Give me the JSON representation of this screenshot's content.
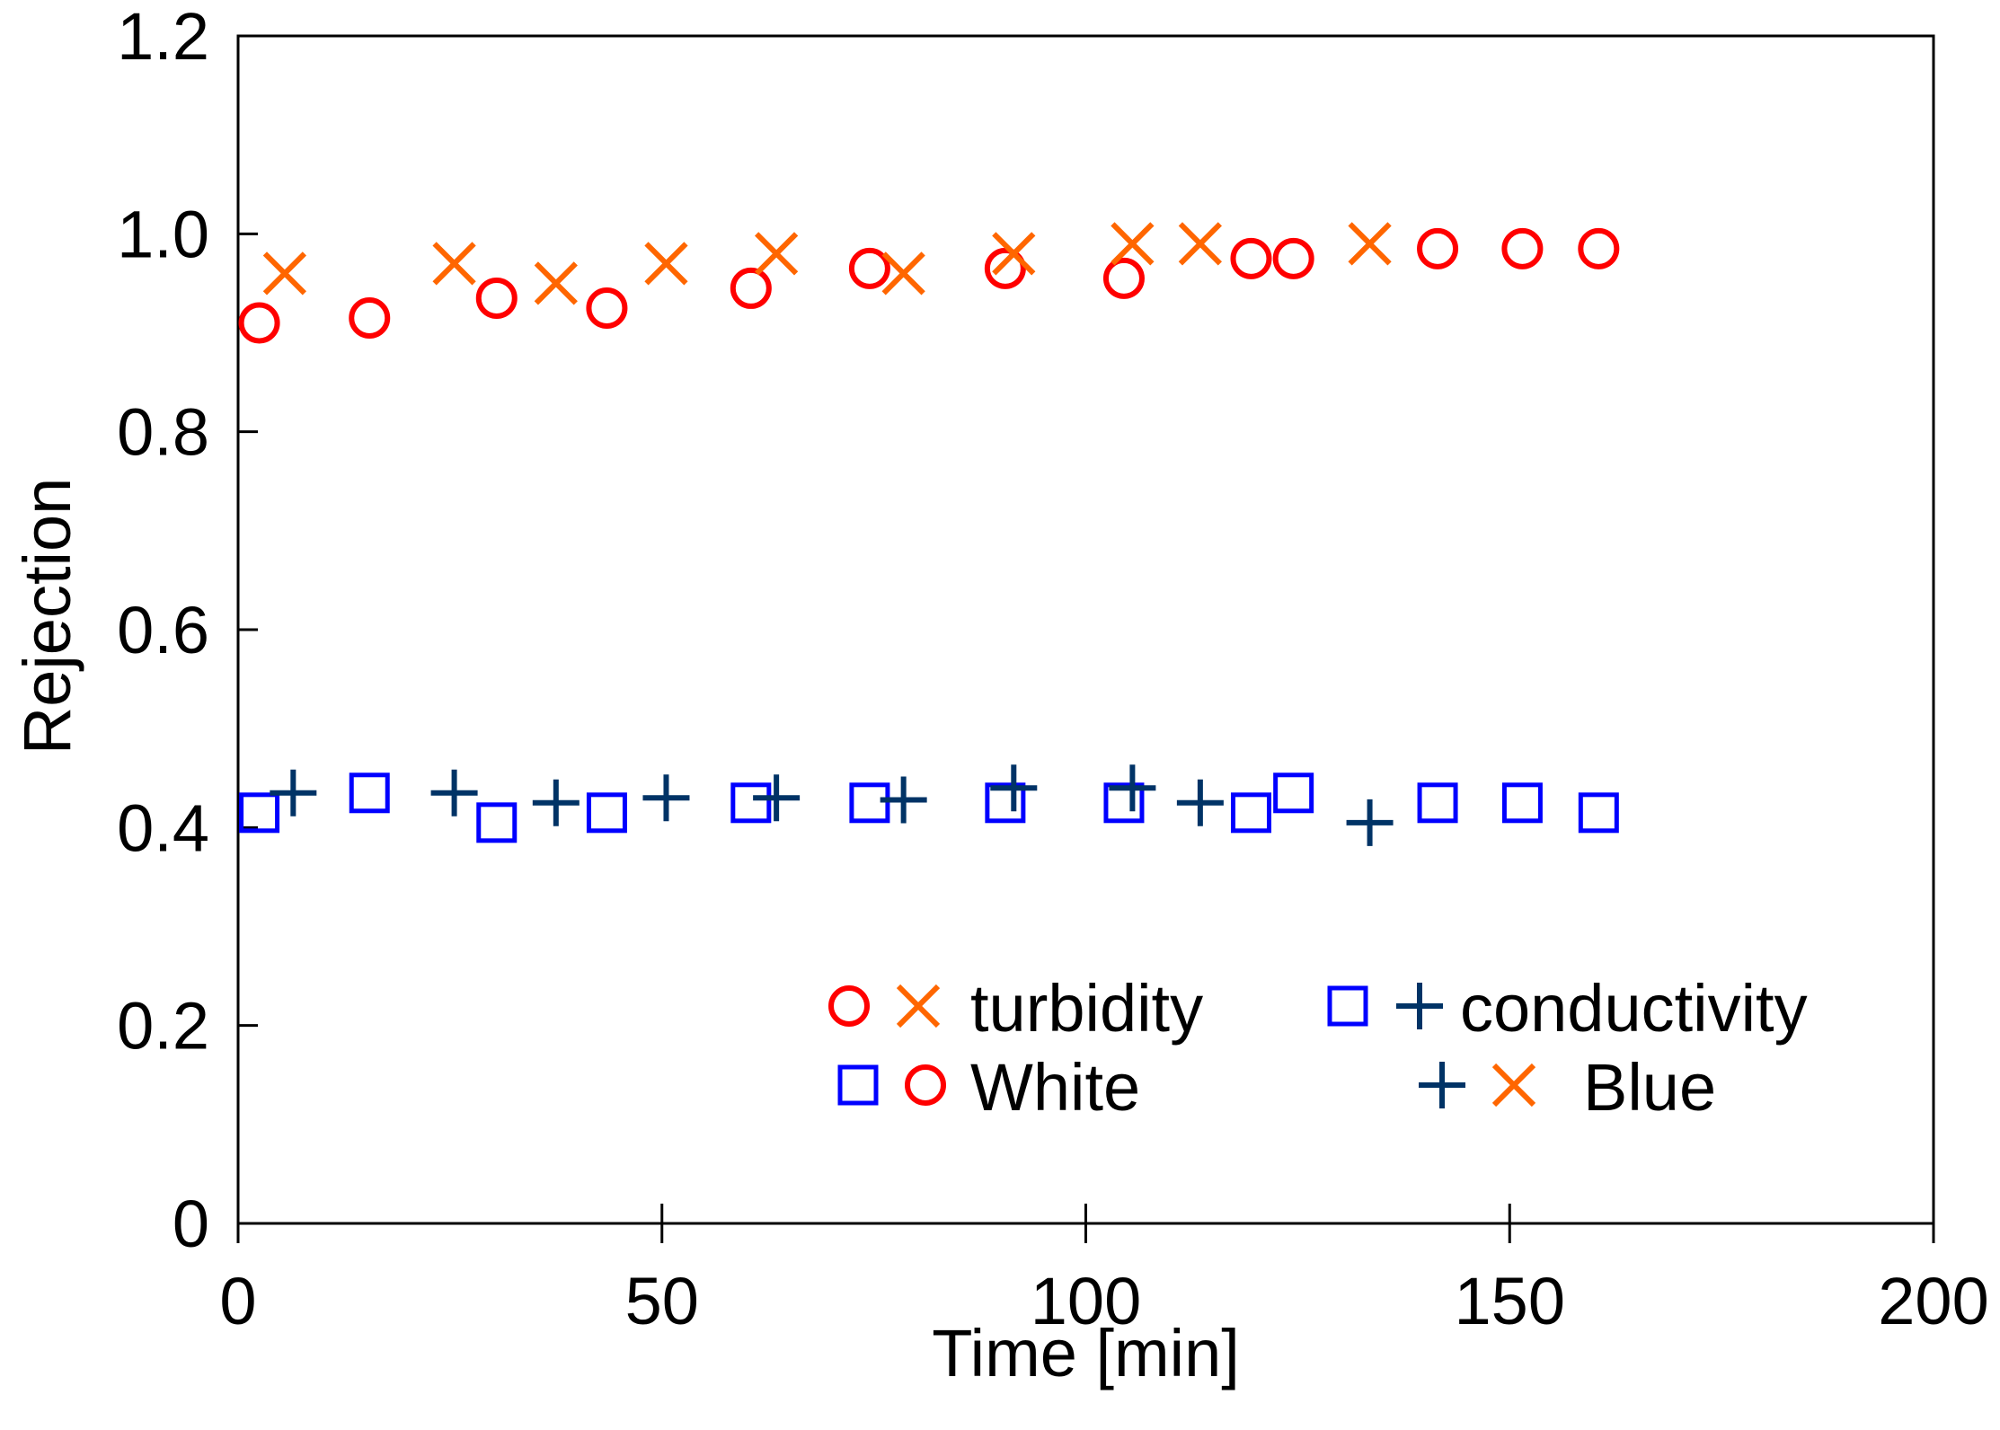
{
  "chart_data": {
    "type": "scatter",
    "title": "",
    "xlabel": "Time [min]",
    "ylabel": "Rejection",
    "xlim": [
      0,
      200
    ],
    "ylim": [
      0,
      1.2
    ],
    "x_ticks": [
      0,
      50,
      100,
      150,
      200
    ],
    "x_tick_labels": [
      "0",
      "50",
      "100",
      "150",
      "200"
    ],
    "y_ticks": [
      0,
      0.2,
      0.4,
      0.6,
      0.8,
      1.0,
      1.2
    ],
    "y_tick_labels": [
      "0",
      "0.2",
      "0.4",
      "0.6",
      "0.8",
      "1.0",
      "1.2"
    ],
    "grid": false,
    "legend_position": "bottom-right",
    "legend": {
      "rows": [
        [
          {
            "markers": [
              "circle-red",
              "x-orange"
            ],
            "label": "turbidity"
          },
          {
            "markers": [
              "square-blue",
              "plus-navy"
            ],
            "label": "conductivity"
          }
        ],
        [
          {
            "markers": [
              "square-blue",
              "circle-red"
            ],
            "label": "White"
          },
          {
            "markers": [
              "plus-navy",
              "x-orange"
            ],
            "label": "Blue"
          }
        ]
      ]
    },
    "series": [
      {
        "marker": "circle",
        "color": "#ff0000",
        "x": [
          2.5,
          15.5,
          30.5,
          43.5,
          60.5,
          74.5,
          90.5,
          104.5,
          119.5,
          124.5,
          141.5,
          151.5,
          160.5
        ],
        "y": [
          0.91,
          0.915,
          0.935,
          0.925,
          0.945,
          0.965,
          0.965,
          0.955,
          0.975,
          0.975,
          0.985,
          0.985,
          0.985
        ]
      },
      {
        "marker": "x",
        "color": "#ff6600",
        "x": [
          5.5,
          25.5,
          37.5,
          50.5,
          63.5,
          78.5,
          91.5,
          105.5,
          113.5,
          133.5
        ],
        "y": [
          0.96,
          0.97,
          0.95,
          0.97,
          0.98,
          0.96,
          0.98,
          0.99,
          0.99,
          0.99
        ]
      },
      {
        "marker": "square",
        "color": "#0000ff",
        "x": [
          2.5,
          15.5,
          30.5,
          43.5,
          60.5,
          74.5,
          90.5,
          104.5,
          119.5,
          124.5,
          141.5,
          151.5,
          160.5
        ],
        "y": [
          0.415,
          0.435,
          0.405,
          0.415,
          0.425,
          0.425,
          0.425,
          0.425,
          0.415,
          0.435,
          0.425,
          0.425,
          0.415
        ]
      },
      {
        "marker": "plus",
        "color": "#003366",
        "x": [
          6.5,
          25.5,
          37.5,
          50.5,
          63.5,
          78.5,
          91.5,
          105.5,
          113.5,
          133.5
        ],
        "y": [
          0.435,
          0.435,
          0.425,
          0.43,
          0.43,
          0.428,
          0.44,
          0.44,
          0.425,
          0.405
        ]
      }
    ]
  }
}
